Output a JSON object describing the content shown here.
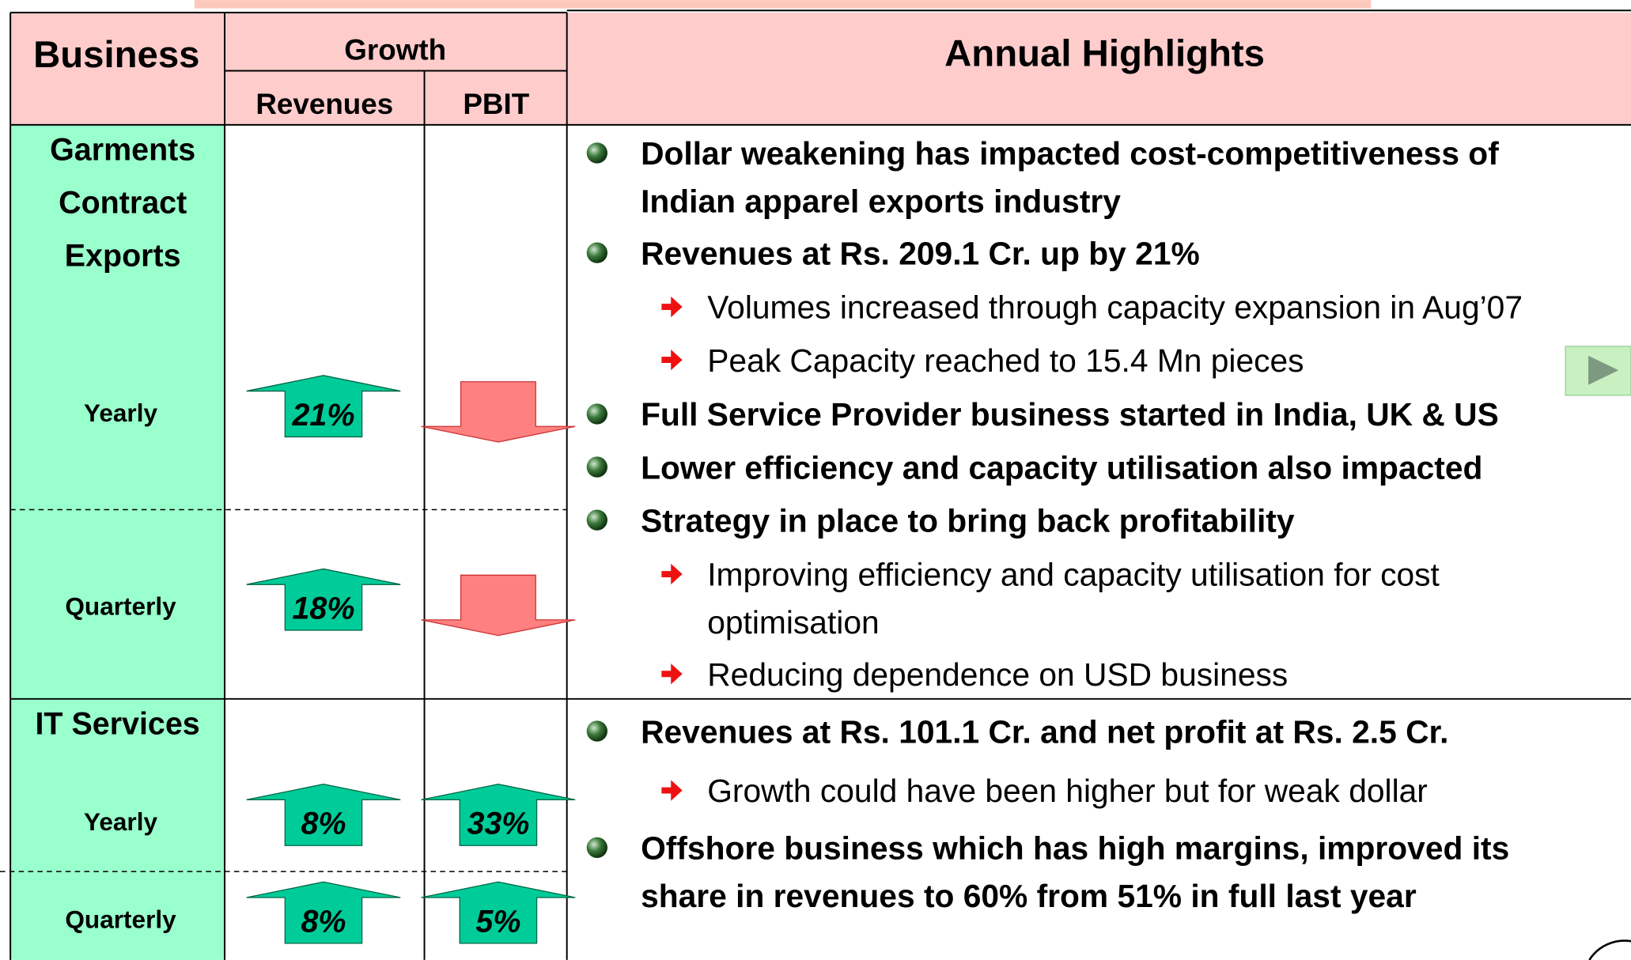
{
  "header": {
    "business": "Business",
    "growth": "Growth",
    "revenues": "Revenues",
    "pbit": "PBIT",
    "highlights": "Annual Highlights"
  },
  "sections": [
    {
      "name_lines": [
        "Garments",
        "Contract",
        "Exports"
      ],
      "rows": [
        {
          "label": "Yearly",
          "revenue": {
            "direction": "up",
            "label": "21%"
          },
          "pbit": {
            "direction": "down"
          }
        },
        {
          "label": "Quarterly",
          "revenue": {
            "direction": "up",
            "label": "18%"
          },
          "pbit": {
            "direction": "down"
          }
        }
      ],
      "highlights": [
        {
          "level": 1,
          "lines": [
            "Dollar weakening has impacted cost-competitiveness of",
            "Indian apparel exports industry"
          ]
        },
        {
          "level": 1,
          "lines": [
            "Revenues at Rs. 209.1 Cr. up by 21%"
          ]
        },
        {
          "level": 2,
          "lines": [
            "Volumes increased through capacity expansion in Aug’07"
          ]
        },
        {
          "level": 2,
          "lines": [
            "Peak Capacity reached to 15.4 Mn pieces"
          ]
        },
        {
          "level": 1,
          "lines": [
            "Full Service Provider business started in India, UK & US"
          ]
        },
        {
          "level": 1,
          "lines": [
            "Lower efficiency and capacity utilisation also impacted"
          ]
        },
        {
          "level": 1,
          "lines": [
            "Strategy in place to bring back profitability"
          ]
        },
        {
          "level": 2,
          "lines": [
            "Improving efficiency and capacity utilisation for cost",
            "optimisation"
          ]
        },
        {
          "level": 2,
          "lines": [
            "Reducing dependence on USD business"
          ]
        }
      ]
    },
    {
      "name_lines": [
        "IT Services"
      ],
      "rows": [
        {
          "label": "Yearly",
          "revenue": {
            "direction": "up",
            "label": "8%"
          },
          "pbit": {
            "direction": "up",
            "label": "33%"
          }
        },
        {
          "label": "Quarterly",
          "revenue": {
            "direction": "up",
            "label": "8%"
          },
          "pbit": {
            "direction": "up",
            "label": "5%"
          }
        }
      ],
      "highlights": [
        {
          "level": 1,
          "lines": [
            "Revenues at Rs. 101.1 Cr. and net profit at Rs. 2.5 Cr."
          ]
        },
        {
          "level": 2,
          "lines": [
            "Growth could have been higher but for weak dollar"
          ]
        },
        {
          "level": 1,
          "lines": [
            "Offshore business which has high margins, improved its",
            "share in revenues to 60% from 51% in full last year"
          ]
        }
      ]
    }
  ]
}
